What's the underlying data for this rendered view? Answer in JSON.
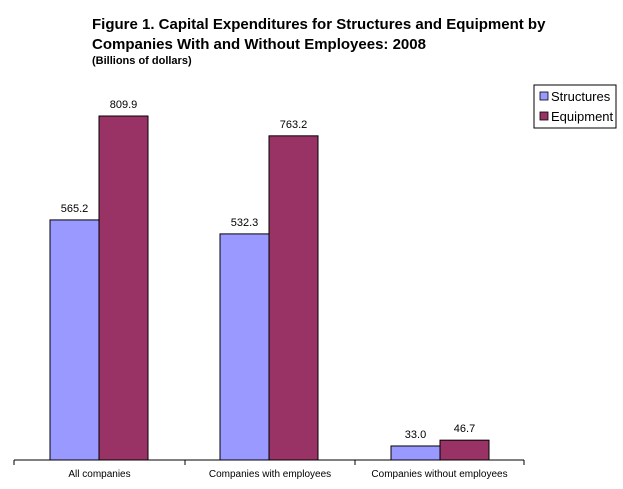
{
  "chart_data": {
    "type": "bar",
    "title_lines": [
      "Figure 1. Capital Expenditures for Structures and Equipment by",
      "Companies With and Without Employees: 2008"
    ],
    "subtitle": "(Billions of dollars)",
    "categories": [
      "All companies",
      "Companies with employees",
      "Companies without employees"
    ],
    "series": [
      {
        "name": "Structures",
        "values": [
          565.2,
          532.3,
          33.0
        ],
        "labels": [
          "565.2",
          "532.3",
          "33.0"
        ],
        "color": "#9999ff"
      },
      {
        "name": "Equipment",
        "values": [
          809.9,
          763.2,
          46.7
        ],
        "labels": [
          "809.9",
          "763.2",
          "46.7"
        ],
        "color": "#993366"
      }
    ],
    "ylim": [
      0,
      1000
    ],
    "grid": false,
    "legend_position": "top-right"
  }
}
